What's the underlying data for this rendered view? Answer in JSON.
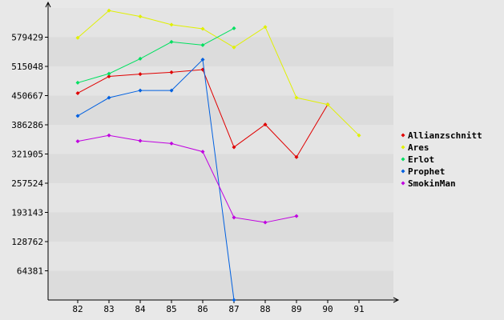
{
  "chart_data": {
    "type": "line",
    "title": "",
    "xlabel": "",
    "ylabel": "",
    "categories": [
      "82",
      "83",
      "84",
      "85",
      "86",
      "87",
      "88",
      "89",
      "90",
      "91"
    ],
    "y_ticks": [
      "64381",
      "128762",
      "193143",
      "257524",
      "321905",
      "386286",
      "450667",
      "515048",
      "579429"
    ],
    "y_tick_values": [
      64381,
      128762,
      193143,
      257524,
      321905,
      386286,
      450667,
      515048,
      579429
    ],
    "ylim": [
      0,
      643810
    ],
    "grid": "horizontal-bands",
    "legend_position": "right",
    "series": [
      {
        "name": "Allianzschnitt",
        "color": "#e00000",
        "values": [
          456000,
          493000,
          498000,
          502000,
          508000,
          337000,
          387000,
          315000,
          431000,
          null
        ]
      },
      {
        "name": "Ares",
        "color": "#e0f000",
        "values": [
          578000,
          638000,
          625000,
          607000,
          598000,
          557000,
          602000,
          446000,
          431000,
          363000
        ]
      },
      {
        "name": "Erlot",
        "color": "#00e060",
        "values": [
          479000,
          499000,
          532000,
          569000,
          562000,
          599000,
          null,
          null,
          null,
          null
        ]
      },
      {
        "name": "Prophet",
        "color": "#0060e0",
        "values": [
          406000,
          446000,
          462000,
          462000,
          530000,
          0,
          null,
          null,
          null,
          null
        ]
      },
      {
        "name": "SmokinMan",
        "color": "#c000e0",
        "values": [
          350000,
          363000,
          351000,
          345000,
          327000,
          182000,
          171000,
          185000,
          null,
          null
        ]
      }
    ]
  }
}
